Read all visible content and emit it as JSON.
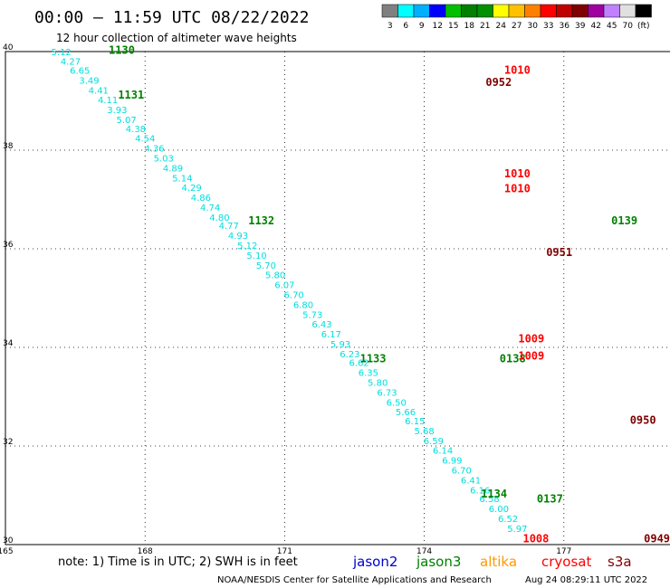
{
  "title": "00:00 – 11:59 UTC 08/22/2022",
  "subtitle": "12 hour collection of altimeter wave heights",
  "scale": {
    "labels": [
      "3",
      "6",
      "9",
      "12",
      "15",
      "18",
      "21",
      "24",
      "27",
      "30",
      "33",
      "36",
      "39",
      "42",
      "45",
      "70",
      "(ft)"
    ],
    "colors": [
      "#808080",
      "#00ffff",
      "#00b0ff",
      "#0000ff",
      "#00c000",
      "#008000",
      "#009000",
      "#ffff00",
      "#ffc000",
      "#ff8000",
      "#ff0000",
      "#c00000",
      "#800000",
      "#a000a0",
      "#c080ff",
      "#e0e0e0",
      "#000000"
    ]
  },
  "axes": {
    "x_ticks": [
      "165",
      "168",
      "171",
      "174",
      "177"
    ],
    "y_ticks": [
      "40",
      "38",
      "36",
      "34",
      "32",
      "30"
    ]
  },
  "legend": {
    "note": "note: 1) Time is in UTC; 2) SWH is in feet",
    "satellites": [
      {
        "name": "jason2",
        "color": "#0000cc"
      },
      {
        "name": "jason3",
        "color": "#008000"
      },
      {
        "name": "altika",
        "color": "#ff9900"
      },
      {
        "name": "cryosat",
        "color": "#ff0000"
      },
      {
        "name": "s3a",
        "color": "#800000"
      }
    ]
  },
  "footer": {
    "credit": "NOAA/NESDIS Center for Satellite Applications and Research",
    "generated": "Aug 24 08:29:11 UTC 2022"
  },
  "colors": {
    "value_cyan": "#00dddd",
    "grid": "#000000"
  },
  "chart_data": {
    "type": "scatter",
    "xlim": [
      165,
      179.5
    ],
    "ylim": [
      30,
      40
    ],
    "x_ticks": [
      165,
      168,
      171,
      174,
      177
    ],
    "y_ticks": [
      30,
      32,
      34,
      36,
      38,
      40
    ],
    "grid": true,
    "points": [
      {
        "x": 166.2,
        "y": 39.93,
        "v": "5.12"
      },
      {
        "x": 166.4,
        "y": 39.73,
        "v": "4.27"
      },
      {
        "x": 166.6,
        "y": 39.55,
        "v": "6.65"
      },
      {
        "x": 166.8,
        "y": 39.35,
        "v": "3.49"
      },
      {
        "x": 167.0,
        "y": 39.15,
        "v": "4.41"
      },
      {
        "x": 167.2,
        "y": 38.95,
        "v": "4.11"
      },
      {
        "x": 167.4,
        "y": 38.75,
        "v": "3.93"
      },
      {
        "x": 167.6,
        "y": 38.55,
        "v": "5.07"
      },
      {
        "x": 167.8,
        "y": 38.37,
        "v": "4.38"
      },
      {
        "x": 168.0,
        "y": 38.17,
        "v": "4.54"
      },
      {
        "x": 168.2,
        "y": 37.97,
        "v": "4.36"
      },
      {
        "x": 168.4,
        "y": 37.77,
        "v": "5.03"
      },
      {
        "x": 168.6,
        "y": 37.57,
        "v": "4.89"
      },
      {
        "x": 168.8,
        "y": 37.37,
        "v": "5.14"
      },
      {
        "x": 169.0,
        "y": 37.17,
        "v": "4.29"
      },
      {
        "x": 169.2,
        "y": 36.97,
        "v": "4.86"
      },
      {
        "x": 169.4,
        "y": 36.77,
        "v": "4.74"
      },
      {
        "x": 169.6,
        "y": 36.57,
        "v": "4.80"
      },
      {
        "x": 169.8,
        "y": 36.4,
        "v": "4.77"
      },
      {
        "x": 170.0,
        "y": 36.2,
        "v": "4.93"
      },
      {
        "x": 170.2,
        "y": 36.0,
        "v": "5.12"
      },
      {
        "x": 170.4,
        "y": 35.8,
        "v": "5.10"
      },
      {
        "x": 170.6,
        "y": 35.6,
        "v": "5.70"
      },
      {
        "x": 170.8,
        "y": 35.4,
        "v": "5.80"
      },
      {
        "x": 171.0,
        "y": 35.2,
        "v": "6.07"
      },
      {
        "x": 171.2,
        "y": 35.0,
        "v": "6.70"
      },
      {
        "x": 171.4,
        "y": 34.8,
        "v": "6.80"
      },
      {
        "x": 171.6,
        "y": 34.6,
        "v": "5.73"
      },
      {
        "x": 171.8,
        "y": 34.4,
        "v": "6.43"
      },
      {
        "x": 172.0,
        "y": 34.2,
        "v": "6.17"
      },
      {
        "x": 172.2,
        "y": 34.0,
        "v": "5.93"
      },
      {
        "x": 172.4,
        "y": 33.8,
        "v": "6.23"
      },
      {
        "x": 172.6,
        "y": 33.62,
        "v": "6.62"
      },
      {
        "x": 172.8,
        "y": 33.42,
        "v": "6.35"
      },
      {
        "x": 173.0,
        "y": 33.22,
        "v": "5.80"
      },
      {
        "x": 173.2,
        "y": 33.02,
        "v": "6.73"
      },
      {
        "x": 173.4,
        "y": 32.82,
        "v": "6.50"
      },
      {
        "x": 173.6,
        "y": 32.62,
        "v": "5.66"
      },
      {
        "x": 173.8,
        "y": 32.44,
        "v": "6.15"
      },
      {
        "x": 174.0,
        "y": 32.24,
        "v": "5.68"
      },
      {
        "x": 174.2,
        "y": 32.04,
        "v": "6.59"
      },
      {
        "x": 174.4,
        "y": 31.84,
        "v": "6.14"
      },
      {
        "x": 174.6,
        "y": 31.64,
        "v": "6.99"
      },
      {
        "x": 174.8,
        "y": 31.44,
        "v": "6.70"
      },
      {
        "x": 175.0,
        "y": 31.24,
        "v": "6.41"
      },
      {
        "x": 175.2,
        "y": 31.04,
        "v": "6.16"
      },
      {
        "x": 175.4,
        "y": 30.86,
        "v": "6.58"
      },
      {
        "x": 175.6,
        "y": 30.66,
        "v": "6.00"
      },
      {
        "x": 175.8,
        "y": 30.46,
        "v": "6.52"
      },
      {
        "x": 176.0,
        "y": 30.26,
        "v": "5.97"
      }
    ],
    "track_labels": [
      {
        "x": 167.5,
        "y": 39.95,
        "text": "1130",
        "satellite": "jason3"
      },
      {
        "x": 167.7,
        "y": 39.05,
        "text": "1131",
        "satellite": "jason3"
      },
      {
        "x": 170.5,
        "y": 36.5,
        "text": "1132",
        "satellite": "jason3"
      },
      {
        "x": 172.9,
        "y": 33.7,
        "text": "1133",
        "satellite": "jason3"
      },
      {
        "x": 175.5,
        "y": 30.95,
        "text": "1134",
        "satellite": "jason3"
      },
      {
        "x": 176.7,
        "y": 30.85,
        "text": "0137",
        "satellite": "jason3"
      },
      {
        "x": 175.9,
        "y": 33.7,
        "text": "0138",
        "satellite": "jason3"
      },
      {
        "x": 178.3,
        "y": 36.5,
        "text": "0139",
        "satellite": "jason3"
      },
      {
        "x": 176.0,
        "y": 39.55,
        "text": "1010",
        "satellite": "cryosat"
      },
      {
        "x": 176.0,
        "y": 37.45,
        "text": "1010",
        "satellite": "cryosat"
      },
      {
        "x": 176.0,
        "y": 37.15,
        "text": "1010",
        "satellite": "cryosat"
      },
      {
        "x": 176.3,
        "y": 34.1,
        "text": "1009",
        "satellite": "cryosat"
      },
      {
        "x": 176.3,
        "y": 33.75,
        "text": "1009",
        "satellite": "cryosat"
      },
      {
        "x": 176.4,
        "y": 30.05,
        "text": "1008",
        "satellite": "cryosat"
      },
      {
        "x": 175.6,
        "y": 39.3,
        "text": "0952",
        "satellite": "s3a"
      },
      {
        "x": 176.9,
        "y": 35.85,
        "text": "0951",
        "satellite": "s3a"
      },
      {
        "x": 178.7,
        "y": 32.45,
        "text": "0950",
        "satellite": "s3a"
      },
      {
        "x": 179.0,
        "y": 30.05,
        "text": "0949",
        "satellite": "s3a"
      }
    ]
  }
}
